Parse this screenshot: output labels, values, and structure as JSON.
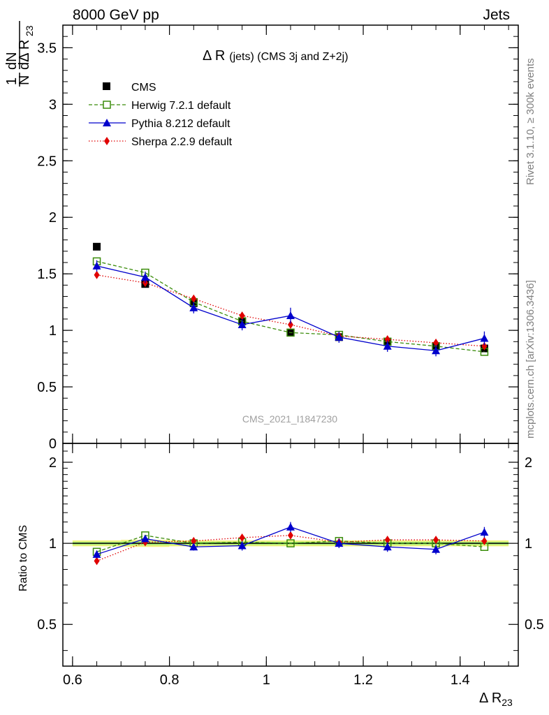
{
  "header": {
    "energy_label": "8000 GeV pp",
    "process_label": "Jets"
  },
  "side": {
    "rivet_label": "Rivet 3.1.10, ≥ 300k events",
    "url_label": "mcplots.cern.ch [arXiv:1306.3436]"
  },
  "plot": {
    "title_main": "Δ R",
    "title_rest": "(jets) (CMS 3j and Z+2j)",
    "watermark": "CMS_2021_I1847230",
    "ylabel_top_num": "1",
    "ylabel_top_n": "N",
    "ylabel_top_dn": "dN",
    "ylabel_top_den": "dΔ R",
    "ylabel_top_sub": "23",
    "ylabel_ratio": "Ratio to CMS",
    "xlabel": "Δ R",
    "xlabel_sub": "23"
  },
  "legend": [
    {
      "name": "CMS",
      "color": "#000000"
    },
    {
      "name": "Herwig 7.2.1 default",
      "color": "#3a8c0a"
    },
    {
      "name": "Pythia 8.212 default",
      "color": "#0000cc"
    },
    {
      "name": "Sherpa 2.2.9 default",
      "color": "#e00000"
    }
  ],
  "chart_data": {
    "type": "line",
    "x": [
      0.65,
      0.75,
      0.85,
      0.95,
      1.05,
      1.15,
      1.25,
      1.35,
      1.45
    ],
    "xlim": [
      0.58,
      1.52
    ],
    "xticks": [
      "0.6",
      "0.8",
      "1",
      "1.2",
      "1.4"
    ],
    "xtick_values": [
      0.6,
      0.8,
      1.0,
      1.2,
      1.4
    ],
    "main": {
      "ylim": [
        0,
        3.7
      ],
      "yticks": [
        "0",
        "0.5",
        "1",
        "1.5",
        "2",
        "2.5",
        "3",
        "3.5"
      ],
      "ytick_values": [
        0,
        0.5,
        1,
        1.5,
        2,
        2.5,
        3,
        3.5
      ],
      "series": [
        {
          "name": "CMS",
          "style": "data",
          "values": [
            1.74,
            1.41,
            1.24,
            1.08,
            0.98,
            0.94,
            0.9,
            0.86,
            0.84
          ]
        },
        {
          "name": "Herwig 7.2.1 default",
          "style": "herwig",
          "values": [
            1.61,
            1.51,
            1.25,
            1.08,
            0.98,
            0.96,
            0.9,
            0.86,
            0.81
          ]
        },
        {
          "name": "Pythia 8.212 default",
          "style": "pythia",
          "values": [
            1.57,
            1.47,
            1.2,
            1.05,
            1.13,
            0.94,
            0.86,
            0.82,
            0.93
          ],
          "errors": [
            0.05,
            0.05,
            0.05,
            0.05,
            0.07,
            0.05,
            0.05,
            0.05,
            0.06
          ]
        },
        {
          "name": "Sherpa 2.2.9 default",
          "style": "sherpa",
          "values": [
            1.49,
            1.42,
            1.28,
            1.13,
            1.05,
            0.95,
            0.92,
            0.89,
            0.86
          ]
        }
      ]
    },
    "ratio": {
      "ylim": [
        0.35,
        2.35
      ],
      "log": true,
      "yticks": [
        "0.5",
        "1",
        "2"
      ],
      "ytick_values": [
        0.5,
        1,
        2
      ],
      "band": [
        {
          "x0": 0.6,
          "x1": 0.7,
          "lo": 0.975,
          "hi": 1.025
        },
        {
          "x0": 0.7,
          "x1": 0.8,
          "lo": 0.97,
          "hi": 1.03
        },
        {
          "x0": 0.8,
          "x1": 1.5,
          "lo": 0.975,
          "hi": 1.025
        }
      ],
      "series": [
        {
          "name": "Herwig 7.2.1 default",
          "style": "herwig",
          "values": [
            0.93,
            1.07,
            1.0,
            1.01,
            1.0,
            1.02,
            1.0,
            1.0,
            0.97
          ]
        },
        {
          "name": "Pythia 8.212 default",
          "style": "pythia",
          "values": [
            0.91,
            1.04,
            0.97,
            0.98,
            1.15,
            1.0,
            0.97,
            0.95,
            1.1
          ],
          "errors": [
            0.03,
            0.03,
            0.03,
            0.04,
            0.05,
            0.04,
            0.04,
            0.04,
            0.05
          ]
        },
        {
          "name": "Sherpa 2.2.9 default",
          "style": "sherpa",
          "values": [
            0.86,
            1.01,
            1.02,
            1.05,
            1.07,
            1.01,
            1.03,
            1.03,
            1.02
          ]
        }
      ]
    }
  }
}
